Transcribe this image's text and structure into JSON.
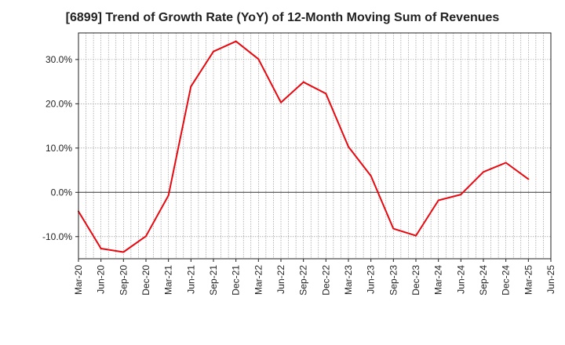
{
  "chart_data": {
    "type": "line",
    "title": "[6899]  Trend of Growth Rate (YoY) of 12-Month Moving Sum of Revenues",
    "xlabel": "",
    "ylabel": "",
    "x": [
      "Mar-20",
      "Jun-20",
      "Sep-20",
      "Dec-20",
      "Mar-21",
      "Jun-21",
      "Sep-21",
      "Dec-21",
      "Mar-22",
      "Jun-22",
      "Sep-22",
      "Dec-22",
      "Mar-23",
      "Jun-23",
      "Sep-23",
      "Dec-23",
      "Mar-24",
      "Jun-24",
      "Sep-24",
      "Dec-24",
      "Mar-25",
      "Jun-25"
    ],
    "series": [
      {
        "values": [
          -4.3,
          -12.7,
          -13.5,
          -9.9,
          -0.7,
          23.9,
          31.8,
          34.1,
          30.1,
          20.3,
          24.9,
          22.3,
          10.3,
          3.7,
          -8.2,
          -9.8,
          -1.8,
          -0.5,
          4.6,
          6.7,
          3.0,
          null
        ],
        "color": "#e8080f"
      }
    ],
    "ylim": [
      -15,
      36
    ],
    "yticks": [
      -10,
      0,
      10,
      20,
      30
    ],
    "ytick_labels": [
      "-10.0%",
      "0.0%",
      "10.0%",
      "20.0%",
      "30.0%"
    ],
    "grid": "dotted vertical and horizontal",
    "zero_line": true,
    "legend": "none"
  }
}
